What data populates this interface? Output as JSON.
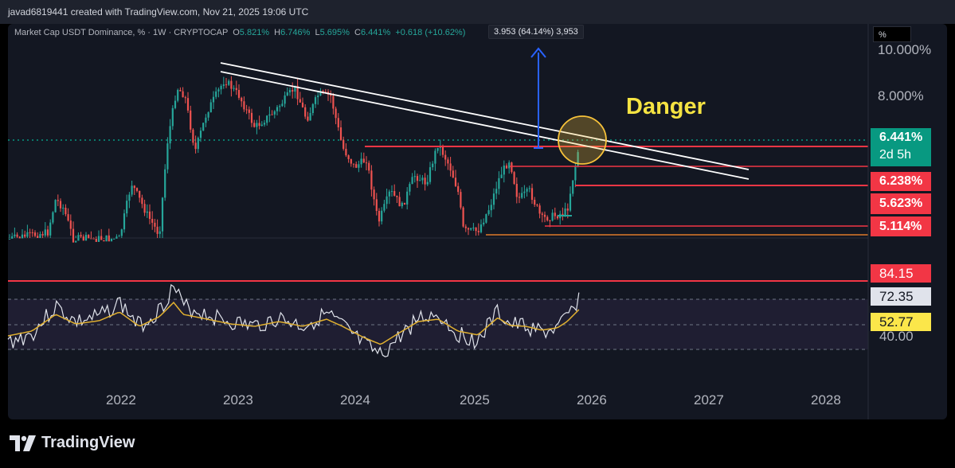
{
  "header": {
    "text": "javad6819441 created with TradingView.com, Nov 21, 2025 19:06 UTC"
  },
  "legend": {
    "title": "Market Cap USDT Dominance, % · 1W · CRYPTOCAP",
    "o_label": "O",
    "o": "5.821%",
    "h_label": "H",
    "h": "6.746%",
    "l_label": "L",
    "l": "5.695%",
    "c_label": "C",
    "c": "6.441%",
    "change": "+0.618 (+10.62%)"
  },
  "measure": {
    "text": "3.953 (64.14%) 3,953"
  },
  "scale_box": {
    "label": "%"
  },
  "annotation": {
    "text": "Danger",
    "color": "#f5e342"
  },
  "price_axis": {
    "ticks": [
      {
        "label": "10.000%",
        "value": 10.0
      },
      {
        "label": "8.000%",
        "value": 8.0
      }
    ],
    "tags": [
      {
        "label": "6.441%",
        "sub": "2d 5h",
        "color": "#089981",
        "value": 6.441
      },
      {
        "label": "6.238%",
        "color": "#f23645",
        "value": 6.238
      },
      {
        "label": "5.623%",
        "color": "#f23645",
        "value": 5.623
      },
      {
        "label": "5.114%",
        "color": "#f23645",
        "value": 5.114
      }
    ]
  },
  "rsi_axis": {
    "ticks": [
      {
        "label": "40.00",
        "value": 40
      }
    ],
    "tags": [
      {
        "label": "84.15",
        "color": "#f23645",
        "text_color": "#ffffff",
        "value": 84.15
      },
      {
        "label": "72.35",
        "color": "#e0e3eb",
        "text_color": "#131722",
        "value": 72.35
      },
      {
        "label": "52.77",
        "color": "#fbe64a",
        "text_color": "#131722",
        "value": 52.77
      }
    ]
  },
  "time_axis": {
    "labels": [
      "2022",
      "2023",
      "2024",
      "2025",
      "2026",
      "2027",
      "2028"
    ]
  },
  "brand": {
    "name": "TradingView"
  },
  "colors": {
    "up": "#26a69a",
    "down": "#ef5350",
    "support": "#f23645",
    "trend": "#ffffff",
    "rsi": "#e0e3eb",
    "rsi_ma": "#e0b030",
    "arrow": "#2962ff",
    "circle": "#f7c23a"
  }
}
